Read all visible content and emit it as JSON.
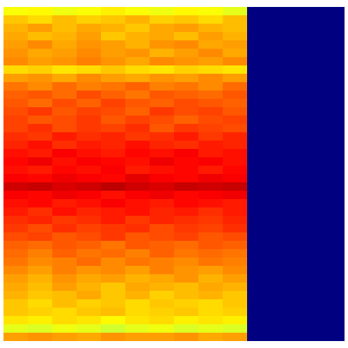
{
  "chart_data": {
    "type": "heatmap",
    "tick_labels": false,
    "zlim": [
      0,
      1
    ],
    "z": [
      [
        0.62,
        0.63,
        0.61,
        0.62,
        0.64,
        0.62,
        0.61,
        0.63,
        0.62,
        0.6,
        0,
        0,
        0,
        0
      ],
      [
        0.68,
        0.66,
        0.69,
        0.67,
        0.68,
        0.7,
        0.67,
        0.68,
        0.66,
        0.69,
        0,
        0,
        0,
        0
      ],
      [
        0.7,
        0.72,
        0.69,
        0.71,
        0.7,
        0.68,
        0.71,
        0.72,
        0.7,
        0.69,
        0,
        0,
        0,
        0
      ],
      [
        0.71,
        0.69,
        0.7,
        0.72,
        0.68,
        0.7,
        0.71,
        0.69,
        0.72,
        0.7,
        0,
        0,
        0,
        0
      ],
      [
        0.72,
        0.74,
        0.71,
        0.73,
        0.72,
        0.7,
        0.73,
        0.74,
        0.71,
        0.72,
        0,
        0,
        0,
        0
      ],
      [
        0.73,
        0.71,
        0.72,
        0.74,
        0.72,
        0.73,
        0.7,
        0.72,
        0.74,
        0.71,
        0,
        0,
        0,
        0
      ],
      [
        0.74,
        0.72,
        0.73,
        0.75,
        0.73,
        0.71,
        0.74,
        0.73,
        0.72,
        0.74,
        0,
        0,
        0,
        0
      ],
      [
        0.66,
        0.67,
        0.65,
        0.66,
        0.68,
        0.66,
        0.65,
        0.67,
        0.66,
        0.65,
        0,
        0,
        0,
        0
      ],
      [
        0.72,
        0.73,
        0.71,
        0.74,
        0.72,
        0.71,
        0.73,
        0.72,
        0.74,
        0.72,
        0,
        0,
        0,
        0
      ],
      [
        0.76,
        0.74,
        0.77,
        0.75,
        0.76,
        0.78,
        0.75,
        0.76,
        0.74,
        0.77,
        0,
        0,
        0,
        0
      ],
      [
        0.78,
        0.79,
        0.77,
        0.8,
        0.78,
        0.76,
        0.79,
        0.78,
        0.77,
        0.79,
        0,
        0,
        0,
        0
      ],
      [
        0.79,
        0.77,
        0.8,
        0.78,
        0.81,
        0.79,
        0.78,
        0.8,
        0.79,
        0.78,
        0,
        0,
        0,
        0
      ],
      [
        0.8,
        0.82,
        0.79,
        0.81,
        0.8,
        0.78,
        0.82,
        0.8,
        0.81,
        0.79,
        0,
        0,
        0,
        0
      ],
      [
        0.81,
        0.79,
        0.8,
        0.82,
        0.79,
        0.81,
        0.8,
        0.78,
        0.8,
        0.81,
        0,
        0,
        0,
        0
      ],
      [
        0.81,
        0.83,
        0.8,
        0.82,
        0.81,
        0.83,
        0.79,
        0.82,
        0.81,
        0.8,
        0,
        0,
        0,
        0
      ],
      [
        0.83,
        0.82,
        0.85,
        0.83,
        0.84,
        0.82,
        0.83,
        0.85,
        0.82,
        0.84,
        0,
        0,
        0,
        0
      ],
      [
        0.84,
        0.86,
        0.83,
        0.85,
        0.84,
        0.86,
        0.84,
        0.83,
        0.85,
        0.84,
        0,
        0,
        0,
        0
      ],
      [
        0.86,
        0.85,
        0.88,
        0.86,
        0.85,
        0.87,
        0.86,
        0.88,
        0.85,
        0.86,
        0,
        0,
        0,
        0
      ],
      [
        0.87,
        0.89,
        0.86,
        0.88,
        0.87,
        0.86,
        0.89,
        0.87,
        0.88,
        0.86,
        0,
        0,
        0,
        0
      ],
      [
        0.86,
        0.85,
        0.87,
        0.86,
        0.88,
        0.85,
        0.86,
        0.87,
        0.85,
        0.87,
        0,
        0,
        0,
        0
      ],
      [
        0.88,
        0.87,
        0.89,
        0.88,
        0.87,
        0.9,
        0.88,
        0.87,
        0.89,
        0.88,
        0,
        0,
        0,
        0
      ],
      [
        0.92,
        0.93,
        0.91,
        0.92,
        0.94,
        0.92,
        0.91,
        0.93,
        0.92,
        0.93,
        0,
        0,
        0,
        0
      ],
      [
        0.88,
        0.87,
        0.89,
        0.88,
        0.86,
        0.88,
        0.89,
        0.87,
        0.88,
        0.89,
        0,
        0,
        0,
        0
      ],
      [
        0.86,
        0.87,
        0.85,
        0.86,
        0.88,
        0.86,
        0.85,
        0.87,
        0.86,
        0.85,
        0,
        0,
        0,
        0
      ],
      [
        0.85,
        0.83,
        0.86,
        0.84,
        0.85,
        0.86,
        0.84,
        0.85,
        0.83,
        0.85,
        0,
        0,
        0,
        0
      ],
      [
        0.83,
        0.84,
        0.82,
        0.83,
        0.85,
        0.82,
        0.84,
        0.83,
        0.82,
        0.84,
        0,
        0,
        0,
        0
      ],
      [
        0.82,
        0.8,
        0.83,
        0.81,
        0.82,
        0.83,
        0.8,
        0.82,
        0.81,
        0.83,
        0,
        0,
        0,
        0
      ],
      [
        0.8,
        0.81,
        0.79,
        0.8,
        0.82,
        0.79,
        0.8,
        0.81,
        0.79,
        0.8,
        0,
        0,
        0,
        0
      ],
      [
        0.78,
        0.77,
        0.79,
        0.78,
        0.76,
        0.79,
        0.78,
        0.77,
        0.79,
        0.78,
        0,
        0,
        0,
        0
      ],
      [
        0.77,
        0.75,
        0.78,
        0.76,
        0.77,
        0.75,
        0.78,
        0.76,
        0.77,
        0.76,
        0,
        0,
        0,
        0
      ],
      [
        0.76,
        0.74,
        0.75,
        0.77,
        0.74,
        0.76,
        0.75,
        0.74,
        0.76,
        0.75,
        0,
        0,
        0,
        0
      ],
      [
        0.74,
        0.72,
        0.75,
        0.73,
        0.74,
        0.72,
        0.75,
        0.73,
        0.72,
        0.74,
        0,
        0,
        0,
        0
      ],
      [
        0.72,
        0.7,
        0.73,
        0.71,
        0.72,
        0.7,
        0.71,
        0.73,
        0.7,
        0.72,
        0,
        0,
        0,
        0
      ],
      [
        0.71,
        0.69,
        0.72,
        0.7,
        0.68,
        0.71,
        0.7,
        0.69,
        0.71,
        0.7,
        0,
        0,
        0,
        0
      ],
      [
        0.7,
        0.68,
        0.69,
        0.71,
        0.68,
        0.7,
        0.67,
        0.69,
        0.7,
        0.68,
        0,
        0,
        0,
        0
      ],
      [
        0.68,
        0.66,
        0.69,
        0.67,
        0.68,
        0.66,
        0.68,
        0.67,
        0.66,
        0.68,
        0,
        0,
        0,
        0
      ],
      [
        0.68,
        0.67,
        0.66,
        0.68,
        0.69,
        0.66,
        0.67,
        0.68,
        0.66,
        0.67,
        0,
        0,
        0,
        0
      ],
      [
        0.65,
        0.64,
        0.66,
        0.65,
        0.63,
        0.65,
        0.66,
        0.64,
        0.65,
        0.64,
        0,
        0,
        0,
        0
      ],
      [
        0.6,
        0.59,
        0.61,
        0.6,
        0.58,
        0.6,
        0.61,
        0.59,
        0.6,
        0.59,
        0,
        0,
        0,
        0
      ],
      [
        0.72,
        0.73,
        0.72,
        0.71,
        0.73,
        0.72,
        0.72,
        0.73,
        0.71,
        0.72,
        0,
        0,
        0,
        0
      ]
    ]
  }
}
